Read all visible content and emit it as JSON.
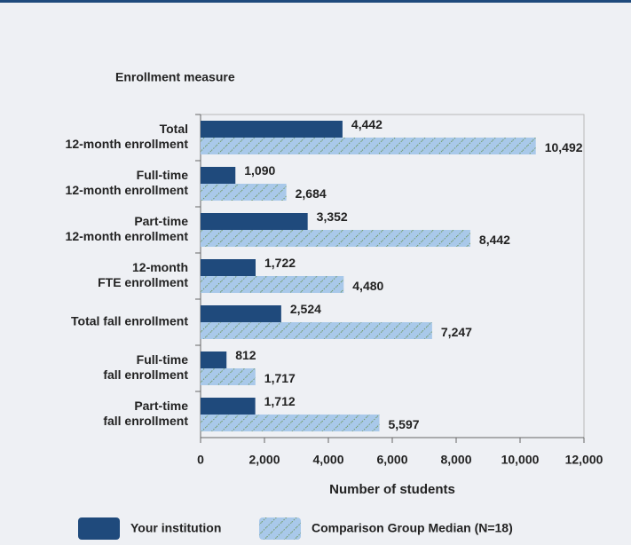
{
  "chart_data": {
    "type": "bar",
    "orientation": "horizontal",
    "y_axis_title": "Enrollment measure",
    "x_axis_title": "Number of students",
    "categories": [
      [
        "Total",
        "12-month enrollment"
      ],
      [
        "Full-time",
        "12-month enrollment"
      ],
      [
        "Part-time",
        "12-month enrollment"
      ],
      [
        "12-month",
        "FTE enrollment"
      ],
      [
        "Total fall enrollment"
      ],
      [
        "Full-time",
        "fall enrollment"
      ],
      [
        "Part-time",
        "fall enrollment"
      ]
    ],
    "series": [
      {
        "name": "Your institution",
        "color": "#1f4a7c",
        "pattern": false,
        "values": [
          4442,
          1090,
          3352,
          1722,
          2524,
          812,
          1712
        ],
        "value_labels": [
          "4,442",
          "1,090",
          "3,352",
          "1,722",
          "2,524",
          "812",
          "1,712"
        ]
      },
      {
        "name": "Comparison Group Median (N=18)",
        "color": "#a9c9ea",
        "pattern": true,
        "values": [
          10492,
          2684,
          8442,
          4480,
          7247,
          1717,
          5597
        ],
        "value_labels": [
          "10,492",
          "2,684",
          "8,442",
          "4,480",
          "7,247",
          "1,717",
          "5,597"
        ]
      }
    ],
    "xlim": [
      0,
      12000
    ],
    "xticks": [
      0,
      {
        "value": 2000,
        "label": "2,000"
      },
      {
        "value": 4000,
        "label": "4,000"
      },
      {
        "value": 6000,
        "label": "6,000"
      },
      {
        "value": 8000,
        "label": "8,000"
      },
      {
        "value": 10000,
        "label": "10,000"
      },
      {
        "value": 12000,
        "label": "12,000"
      }
    ],
    "grid": false,
    "legend": "bottom"
  }
}
